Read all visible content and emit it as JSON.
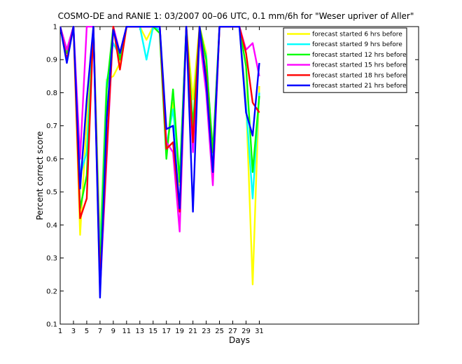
{
  "chart_data": {
    "type": "line",
    "title": "COSMO-DE and RANIE 1: 03/2007 00–06 UTC, 0.1 mm/6h for \"Weser upriver of Aller\"",
    "xlabel": "Days",
    "ylabel": "Percent correct score",
    "xlim": [
      1,
      55
    ],
    "ylim": [
      0.1,
      1
    ],
    "xticks": [
      1,
      3,
      5,
      7,
      9,
      11,
      13,
      15,
      17,
      19,
      21,
      23,
      25,
      27,
      29,
      31
    ],
    "yticks": [
      0.1,
      0.2,
      0.3,
      0.4,
      0.5,
      0.6,
      0.7,
      0.8,
      0.9,
      1
    ],
    "grid": false,
    "legend_position": "top-right",
    "x": [
      1,
      2,
      3,
      4,
      5,
      6,
      7,
      8,
      9,
      10,
      11,
      12,
      13,
      14,
      15,
      16,
      17,
      18,
      19,
      20,
      21,
      22,
      23,
      24,
      25,
      26,
      27,
      28,
      29,
      30,
      31
    ],
    "series": [
      {
        "name": "forecast started 6 hrs before",
        "color": "#ffff00",
        "values": [
          1,
          0.93,
          1,
          0.37,
          0.72,
          1,
          0.34,
          0.84,
          0.85,
          0.89,
          1,
          1,
          1,
          0.96,
          1,
          0.98,
          0.62,
          0.77,
          0.52,
          1,
          0.78,
          1,
          0.92,
          0.55,
          1,
          1,
          1,
          1,
          0.78,
          0.22,
          0.82
        ]
      },
      {
        "name": "forecast started 9 hrs before",
        "color": "#00ffff",
        "values": [
          1,
          0.93,
          1,
          0.55,
          0.62,
          1,
          0.3,
          0.83,
          0.95,
          0.91,
          1,
          1,
          1,
          0.9,
          1,
          0.99,
          0.64,
          0.75,
          0.54,
          1,
          0.68,
          0.98,
          0.91,
          0.6,
          1,
          1,
          1,
          1,
          0.76,
          0.48,
          0.8
        ]
      },
      {
        "name": "forecast started 12 hrs before",
        "color": "#00ff00",
        "values": [
          1,
          0.92,
          1,
          0.45,
          0.55,
          1,
          0.25,
          0.81,
          1,
          0.9,
          1,
          1,
          1,
          1,
          1,
          0.98,
          0.6,
          0.81,
          0.53,
          1,
          0.7,
          1,
          0.9,
          0.62,
          1,
          1,
          1,
          1,
          0.88,
          0.56,
          0.79
        ]
      },
      {
        "name": "forecast started 15 hrs before",
        "color": "#ff00ff",
        "values": [
          1,
          0.93,
          1,
          0.6,
          1,
          1,
          0.2,
          0.6,
          1,
          0.92,
          1,
          1,
          1,
          1,
          1,
          1,
          0.65,
          0.62,
          0.38,
          1,
          0.62,
          0.97,
          0.8,
          0.52,
          1,
          1,
          1,
          1,
          0.93,
          0.95,
          0.85
        ]
      },
      {
        "name": "forecast started 18 hrs before",
        "color": "#ff0000",
        "values": [
          1,
          0.9,
          1,
          0.42,
          0.48,
          1,
          0.23,
          0.62,
          1,
          0.87,
          1,
          1,
          1,
          1,
          1,
          1,
          0.63,
          0.65,
          0.44,
          1,
          0.65,
          1,
          0.85,
          0.56,
          1,
          1,
          1,
          1,
          0.92,
          0.77,
          0.74
        ]
      },
      {
        "name": "forecast started 21 hrs before",
        "color": "#0000ff",
        "values": [
          1,
          0.89,
          1,
          0.51,
          0.78,
          1,
          0.18,
          0.72,
          0.99,
          0.92,
          1,
          1,
          1,
          1,
          1,
          1,
          0.69,
          0.7,
          0.45,
          1,
          0.44,
          1,
          0.83,
          0.56,
          1,
          1,
          1,
          1,
          0.74,
          0.67,
          0.89
        ]
      }
    ]
  }
}
